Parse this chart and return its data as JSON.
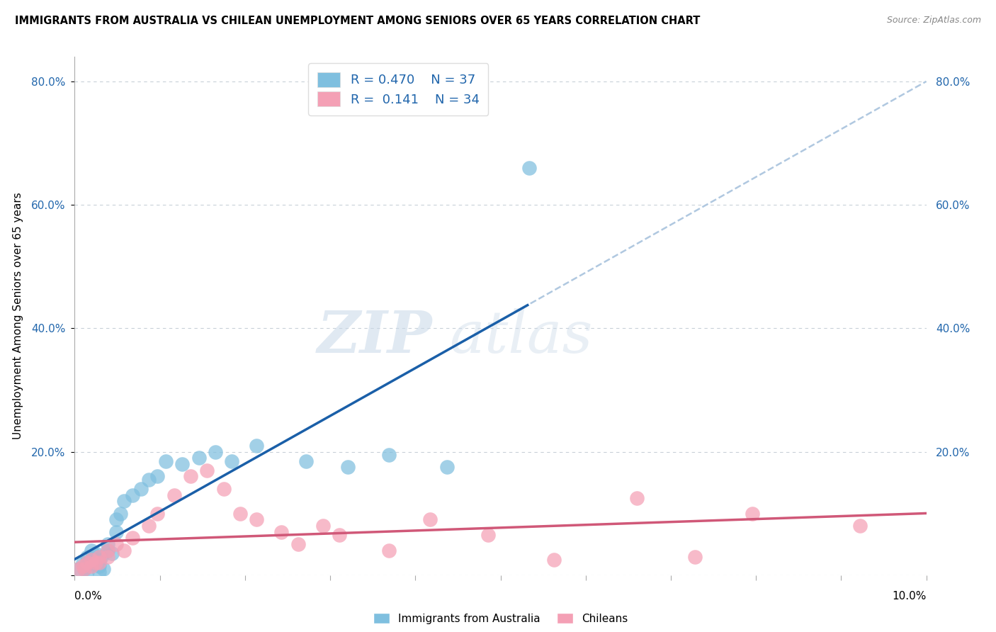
{
  "title": "IMMIGRANTS FROM AUSTRALIA VS CHILEAN UNEMPLOYMENT AMONG SENIORS OVER 65 YEARS CORRELATION CHART",
  "source": "Source: ZipAtlas.com",
  "ylabel": "Unemployment Among Seniors over 65 years",
  "legend_bottom": [
    "Immigrants from Australia",
    "Chileans"
  ],
  "R1": 0.47,
  "N1": 37,
  "R2": 0.141,
  "N2": 34,
  "color_blue": "#7fbfdf",
  "color_pink": "#f4a0b5",
  "color_trend_blue": "#1a5fa8",
  "color_trend_pink": "#d05878",
  "color_trend_ext": "#b0c8e0",
  "color_axis_text": "#2166ac",
  "x_blue": [
    0.0005,
    0.001,
    0.0012,
    0.0013,
    0.0015,
    0.0015,
    0.002,
    0.002,
    0.0022,
    0.0025,
    0.003,
    0.003,
    0.003,
    0.0032,
    0.0035,
    0.004,
    0.004,
    0.0045,
    0.005,
    0.005,
    0.0055,
    0.006,
    0.007,
    0.008,
    0.009,
    0.01,
    0.011,
    0.013,
    0.015,
    0.017,
    0.019,
    0.022,
    0.028,
    0.033,
    0.038,
    0.045,
    0.055
  ],
  "y_blue": [
    0.01,
    0.02,
    0.01,
    0.015,
    0.005,
    0.03,
    0.025,
    0.04,
    0.02,
    0.035,
    0.005,
    0.015,
    0.025,
    0.03,
    0.01,
    0.04,
    0.05,
    0.035,
    0.07,
    0.09,
    0.1,
    0.12,
    0.13,
    0.14,
    0.155,
    0.16,
    0.185,
    0.18,
    0.19,
    0.2,
    0.185,
    0.21,
    0.185,
    0.175,
    0.195,
    0.175,
    0.66
  ],
  "x_pink": [
    0.0005,
    0.001,
    0.0012,
    0.0015,
    0.002,
    0.002,
    0.0025,
    0.003,
    0.003,
    0.004,
    0.004,
    0.005,
    0.006,
    0.007,
    0.009,
    0.01,
    0.012,
    0.014,
    0.016,
    0.018,
    0.02,
    0.022,
    0.025,
    0.027,
    0.03,
    0.032,
    0.038,
    0.043,
    0.05,
    0.058,
    0.068,
    0.075,
    0.082,
    0.095
  ],
  "y_pink": [
    0.01,
    0.015,
    0.01,
    0.02,
    0.015,
    0.025,
    0.02,
    0.03,
    0.02,
    0.04,
    0.03,
    0.05,
    0.04,
    0.06,
    0.08,
    0.1,
    0.13,
    0.16,
    0.17,
    0.14,
    0.1,
    0.09,
    0.07,
    0.05,
    0.08,
    0.065,
    0.04,
    0.09,
    0.065,
    0.025,
    0.125,
    0.03,
    0.1,
    0.08
  ],
  "ylim": [
    0.0,
    0.84
  ],
  "xlim": [
    0.0,
    0.103
  ],
  "yticks": [
    0.0,
    0.2,
    0.4,
    0.6,
    0.8
  ],
  "ytick_labels": [
    "",
    "20.0%",
    "40.0%",
    "60.0%",
    "80.0%"
  ],
  "watermark_text": "ZIPatlas",
  "background_color": "#ffffff",
  "grid_color": "#c8d0d8"
}
